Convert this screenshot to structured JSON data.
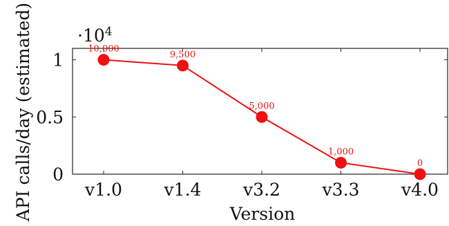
{
  "chart_data": {
    "type": "line",
    "title": "",
    "xlabel": "Version",
    "ylabel": "API calls/day (estimated)",
    "categories": [
      "v1.0",
      "v1.4",
      "v3.2",
      "v3.3",
      "v4.0"
    ],
    "series": [
      {
        "values": [
          10000,
          9500,
          5000,
          1000,
          0
        ]
      }
    ],
    "data_labels": [
      "10,000",
      "9,500",
      "5,000",
      "1,000",
      "0"
    ],
    "y_scale_label": {
      "base": "·10",
      "exponent": "4"
    },
    "y_ticks": [
      {
        "value": 0,
        "label": "0"
      },
      {
        "value": 5000,
        "label": "0.5"
      },
      {
        "value": 10000,
        "label": "1"
      }
    ],
    "ylim": [
      0,
      11000
    ],
    "grid": false,
    "color": "#ee1111"
  }
}
